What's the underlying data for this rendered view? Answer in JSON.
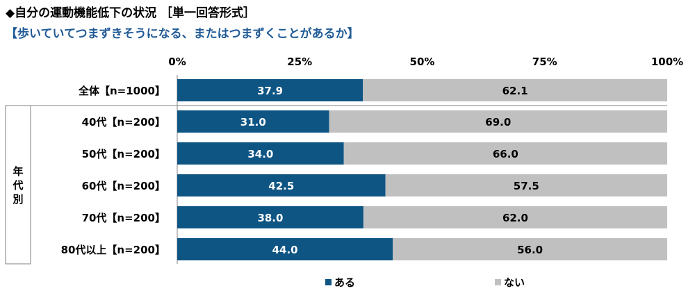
{
  "title": "◆自分の運動機能低下の状況 ［単一回答形式］",
  "subtitle": "【歩いていてつまずきそうになる、またはつまずくことがあるか】",
  "group_label": "年代別",
  "colors": {
    "aru": "#0e5584",
    "nai": "#c0c0c0"
  },
  "chart_data": {
    "type": "bar",
    "orientation": "horizontal",
    "stacked": true,
    "percent": true,
    "xticks": [
      "0%",
      "25%",
      "50%",
      "75%",
      "100%"
    ],
    "xlim": [
      0,
      100
    ],
    "categories": [
      "全体【n=1000】",
      "40代【n=200】",
      "50代【n=200】",
      "60代【n=200】",
      "70代【n=200】",
      "80代以上【n=200】"
    ],
    "series": [
      {
        "name": "ある",
        "values": [
          37.9,
          31.0,
          34.0,
          42.5,
          38.0,
          44.0
        ],
        "labels": [
          "37.9",
          "31.0",
          "34.0",
          "42.5",
          "38.0",
          "44.0"
        ]
      },
      {
        "name": "ない",
        "values": [
          62.1,
          69.0,
          66.0,
          57.5,
          62.0,
          56.0
        ],
        "labels": [
          "62.1",
          "69.0",
          "66.0",
          "57.5",
          "62.0",
          "56.0"
        ]
      }
    ],
    "legend": "bottom",
    "grid": false
  }
}
